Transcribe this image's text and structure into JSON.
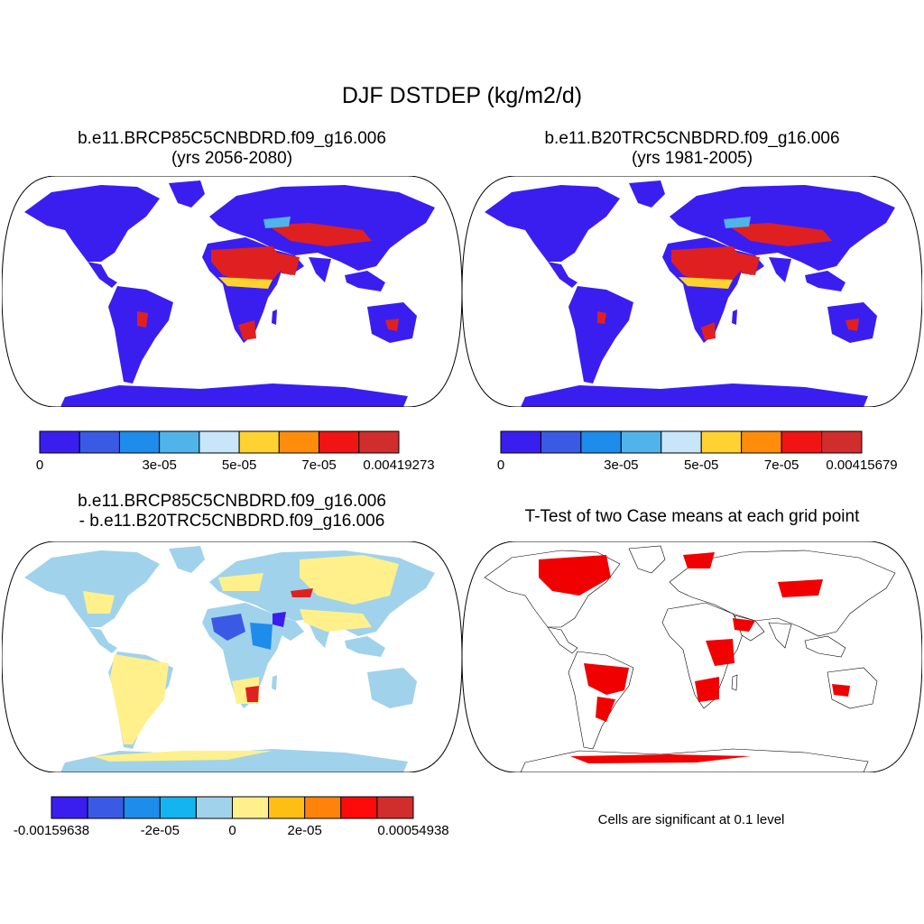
{
  "figure_title": "DJF DSTDEP (kg/m2/d)",
  "panels": [
    {
      "id": "case1",
      "title_line1": "b.e11.BRCP85C5CNBDRD.f09_g16.006",
      "title_line2": "(yrs 2056-2080)",
      "colorbar": {
        "colors": [
          "#3a1ef0",
          "#3a5ae6",
          "#1e8ceb",
          "#50b4eb",
          "#c8e6fa",
          "#ffd232",
          "#ff8c0a",
          "#f01414",
          "#d22d2d"
        ],
        "labels": [
          "0",
          "3e-05",
          "5e-05",
          "7e-05",
          "0.00419273"
        ],
        "label_positions": [
          0,
          3,
          5,
          7,
          9
        ]
      }
    },
    {
      "id": "case2",
      "title_line1": "b.e11.B20TRC5CNBDRD.f09_g16.006",
      "title_line2": "(yrs 1981-2005)",
      "colorbar": {
        "colors": [
          "#3a1ef0",
          "#3a5ae6",
          "#1e8ceb",
          "#50b4eb",
          "#c8e6fa",
          "#ffd232",
          "#ff8c0a",
          "#f01414",
          "#d22d2d"
        ],
        "labels": [
          "0",
          "3e-05",
          "5e-05",
          "7e-05",
          "0.00415679"
        ],
        "label_positions": [
          0,
          3,
          5,
          7,
          9
        ]
      }
    },
    {
      "id": "difference",
      "title_line1": "b.e11.BRCP85C5CNBDRD.f09_g16.006",
      "title_line2": "- b.e11.B20TRC5CNBDRD.f09_g16.006",
      "colorbar": {
        "colors": [
          "#3a1ef0",
          "#3a5ae6",
          "#1e8ceb",
          "#14b4f0",
          "#a0d2eb",
          "#fff08c",
          "#ffbe14",
          "#ff820a",
          "#ff0a0a",
          "#d22d2d"
        ],
        "labels": [
          "-0.00159638",
          "-2e-05",
          "0",
          "2e-05",
          "0.00054938"
        ],
        "label_positions": [
          0,
          3,
          5,
          7,
          10
        ]
      }
    },
    {
      "id": "ttest",
      "title_line1": "T-Test of two Case means at each grid point",
      "note": "Cells are significant at 0.1 level"
    }
  ],
  "colors": {
    "ocean": "#ffffff",
    "land_low": "#3a1ef0",
    "dust_high": "#e02020",
    "diff_positive": "#fff08c",
    "diff_neutral": "#a0d2eb",
    "significant": "#f00000"
  }
}
